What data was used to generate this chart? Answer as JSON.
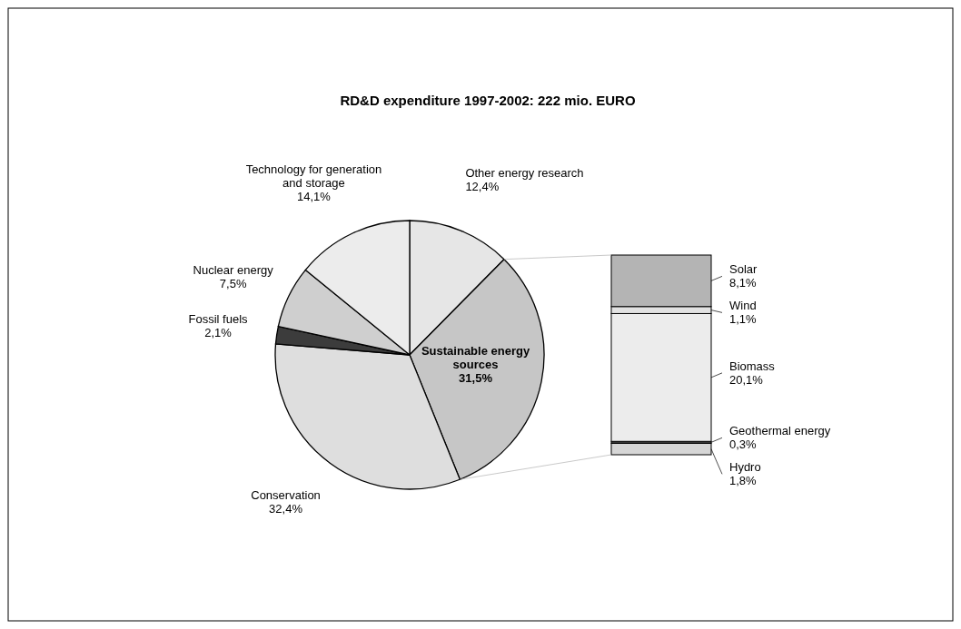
{
  "chart_data": [
    {
      "type": "pie",
      "title": "RD&D expenditure 1997-2002: 222 mio. EURO",
      "categories": [
        "Other energy research",
        "Sustainable energy sources",
        "Conservation",
        "Fossil fuels",
        "Nuclear energy",
        "Technology for generation and storage"
      ],
      "values": [
        12.4,
        31.5,
        32.4,
        2.1,
        7.5,
        14.1
      ],
      "value_labels": [
        "12,4%",
        "31,5%",
        "32,4%",
        "2,1%",
        "7,5%",
        "14,1%"
      ],
      "colors": [
        "#e6e6e6",
        "#c6c6c6",
        "#dedede",
        "#3c3c3c",
        "#cfcfcf",
        "#ececec"
      ]
    },
    {
      "type": "bar",
      "stacked": true,
      "categories": [
        null
      ],
      "series": [
        {
          "name": "Hydro",
          "color": "#d6d6d6",
          "values": [
            1.8
          ],
          "value_labels": [
            "1,8%"
          ]
        },
        {
          "name": "Geothermal energy",
          "color": "#3c3c3c",
          "values": [
            0.3
          ],
          "value_labels": [
            "0,3%"
          ]
        },
        {
          "name": "Biomass",
          "color": "#ececec",
          "values": [
            20.1
          ],
          "value_labels": [
            "20,1%"
          ]
        },
        {
          "name": "Wind",
          "color": "#e2e2e2",
          "values": [
            1.1
          ],
          "value_labels": [
            "1,1%"
          ]
        },
        {
          "name": "Solar",
          "color": "#b4b4b4",
          "values": [
            8.1
          ],
          "value_labels": [
            "8,1%"
          ]
        }
      ]
    }
  ]
}
